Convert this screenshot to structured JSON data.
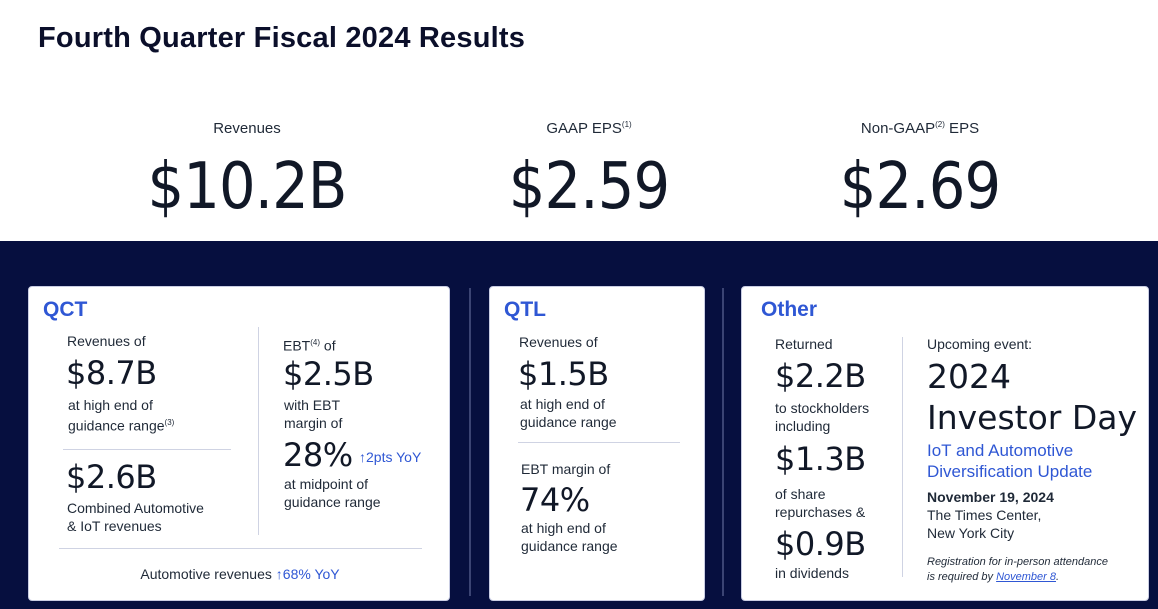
{
  "title": "Fourth Quarter Fiscal 2024 Results",
  "kpis": [
    {
      "label": "Revenues",
      "sup": "",
      "label_after": "",
      "value": "$10.2B"
    },
    {
      "label": "GAAP EPS",
      "sup": "(1)",
      "label_after": "",
      "value": "$2.59"
    },
    {
      "label": "Non-GAAP",
      "sup": "(2)",
      "label_after": " EPS",
      "value": "$2.69"
    }
  ],
  "qct": {
    "title": "QCT",
    "rev_label": "Revenues of",
    "rev_value": "$8.7B",
    "rev_note1": "at high end of",
    "rev_note2": "guidance range",
    "rev_note2_sup": "(3)",
    "iot_value": "$2.6B",
    "iot_note1": "Combined Automotive",
    "iot_note2": "& IoT revenues",
    "ebt_label": "EBT",
    "ebt_sup": "(4)",
    "ebt_label_after": " of",
    "ebt_value": "$2.5B",
    "ebt_note1": "with EBT",
    "ebt_note2": "margin of",
    "margin_value": "28%",
    "margin_change": "↑2pts YoY",
    "margin_note1": "at midpoint of",
    "margin_note2": "guidance range",
    "auto_label": "Automotive revenues",
    "auto_change": "↑68% YoY"
  },
  "qtl": {
    "title": "QTL",
    "rev_label": "Revenues of",
    "rev_value": "$1.5B",
    "rev_note1": "at high end of",
    "rev_note2": "guidance range",
    "ebt_label": "EBT margin of",
    "ebt_value": "74%",
    "ebt_note1": "at high end of",
    "ebt_note2": "guidance range"
  },
  "other": {
    "title": "Other",
    "returned_label": "Returned",
    "returned_value": "$2.2B",
    "returned_note1": "to stockholders",
    "returned_note2": "including",
    "repurchase_value": "$1.3B",
    "repurchase_note1": "of share",
    "repurchase_note2": "repurchases &",
    "dividend_value": "$0.9B",
    "dividend_note": "in dividends",
    "event_label": "Upcoming event:",
    "event_line1": "2024",
    "event_line2": "Investor Day",
    "event_sub1": "IoT and Automotive",
    "event_sub2": "Diversification Update",
    "event_date": "November 19, 2024",
    "event_venue1": "The Times Center,",
    "event_venue2": "New York City",
    "reg_text1": "Registration for in-person attendance",
    "reg_text2": "is required by ",
    "reg_link": "November 8",
    "reg_end": "."
  },
  "colors": {
    "band": "#060f3f",
    "accent": "#2f57d4"
  }
}
